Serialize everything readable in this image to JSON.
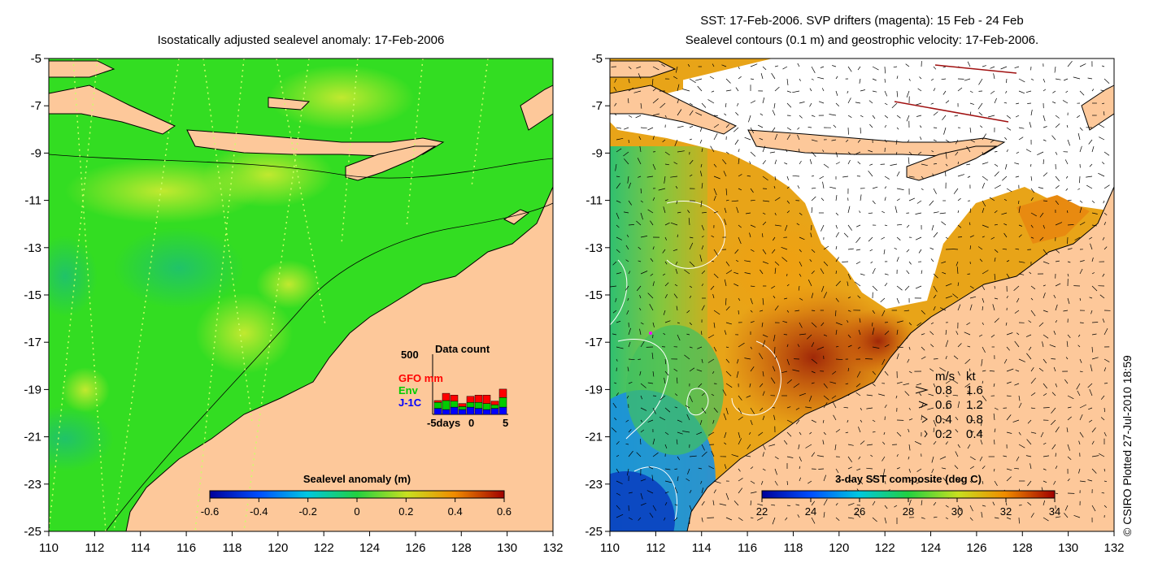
{
  "left_map": {
    "title": "Isostatically adjusted sealevel anomaly: 17-Feb-2006",
    "lat_ticks": [
      "-5",
      "-7",
      "-9",
      "-11",
      "-13",
      "-15",
      "-17",
      "-19",
      "-21",
      "-23",
      "-25"
    ],
    "lon_ticks": [
      "110",
      "112",
      "114",
      "116",
      "118",
      "120",
      "122",
      "124",
      "126",
      "128",
      "130",
      "132"
    ],
    "colorbar": {
      "label": "Sealevel anomaly (m)",
      "ticks": [
        "-0.6",
        "-0.4",
        "-0.2",
        "0",
        "0.2",
        "0.4",
        "0.6"
      ]
    },
    "data_count": {
      "title": "Data count",
      "max_label": "500",
      "legend": [
        {
          "label": "GFO mm",
          "color": "#ff0000"
        },
        {
          "label": "Env",
          "color": "#00cc00"
        },
        {
          "label": "J-1C",
          "color": "#0000ff"
        }
      ],
      "x_ticks": [
        "-5days",
        "0",
        "5"
      ],
      "bars": [
        {
          "day": -5,
          "j1c": 0.1,
          "env": 0.1,
          "gfo": 0.03
        },
        {
          "day": -4,
          "j1c": 0.08,
          "env": 0.15,
          "gfo": 0.12
        },
        {
          "day": -3,
          "j1c": 0.12,
          "env": 0.1,
          "gfo": 0.1
        },
        {
          "day": -2,
          "j1c": 0.08,
          "env": 0.05,
          "gfo": 0.05
        },
        {
          "day": -1,
          "j1c": 0.12,
          "env": 0.08,
          "gfo": 0.1
        },
        {
          "day": 0,
          "j1c": 0.1,
          "env": 0.1,
          "gfo": 0.12
        },
        {
          "day": 1,
          "j1c": 0.08,
          "env": 0.1,
          "gfo": 0.14
        },
        {
          "day": 2,
          "j1c": 0.1,
          "env": 0.06,
          "gfo": 0.06
        },
        {
          "day": 3,
          "j1c": 0.12,
          "env": 0.16,
          "gfo": 0.14
        }
      ]
    },
    "colors": {
      "ocean": "#33dd22",
      "land": "#fdc89a",
      "high": "#bbe82a",
      "low": "#22c86a"
    }
  },
  "right_map": {
    "title_line1": "SST: 17-Feb-2006. SVP drifters (magenta): 15 Feb - 24 Feb",
    "title_line2": "Sealevel contours (0.1 m) and geostrophic velocity: 17-Feb-2006.",
    "lat_ticks": [
      "-5",
      "-7",
      "-9",
      "-11",
      "-13",
      "-15",
      "-17",
      "-19",
      "-21",
      "-23",
      "-25"
    ],
    "lon_ticks": [
      "110",
      "112",
      "114",
      "116",
      "118",
      "120",
      "122",
      "124",
      "126",
      "128",
      "130",
      "132"
    ],
    "colorbar": {
      "label": "3-day SST composite (deg C)",
      "ticks": [
        "22",
        "24",
        "26",
        "28",
        "30",
        "32",
        "34"
      ]
    },
    "speed_legend": {
      "header_ms": "m/s",
      "header_kt": "kt",
      "rows": [
        {
          "ms": "0.8",
          "kt": "1.6"
        },
        {
          "ms": "0.6",
          "kt": "1.2"
        },
        {
          "ms": "0.4",
          "kt": "0.8"
        },
        {
          "ms": "0.2",
          "kt": "0.4"
        }
      ]
    },
    "colors": {
      "land": "#fdc89a",
      "cloud": "#ffffff",
      "warm": "#e89a10",
      "hot": "#b03a08",
      "cool": "#10a0e0"
    }
  },
  "copyright": "© CSIRO Plotted 27-Jul-2010 18:59"
}
